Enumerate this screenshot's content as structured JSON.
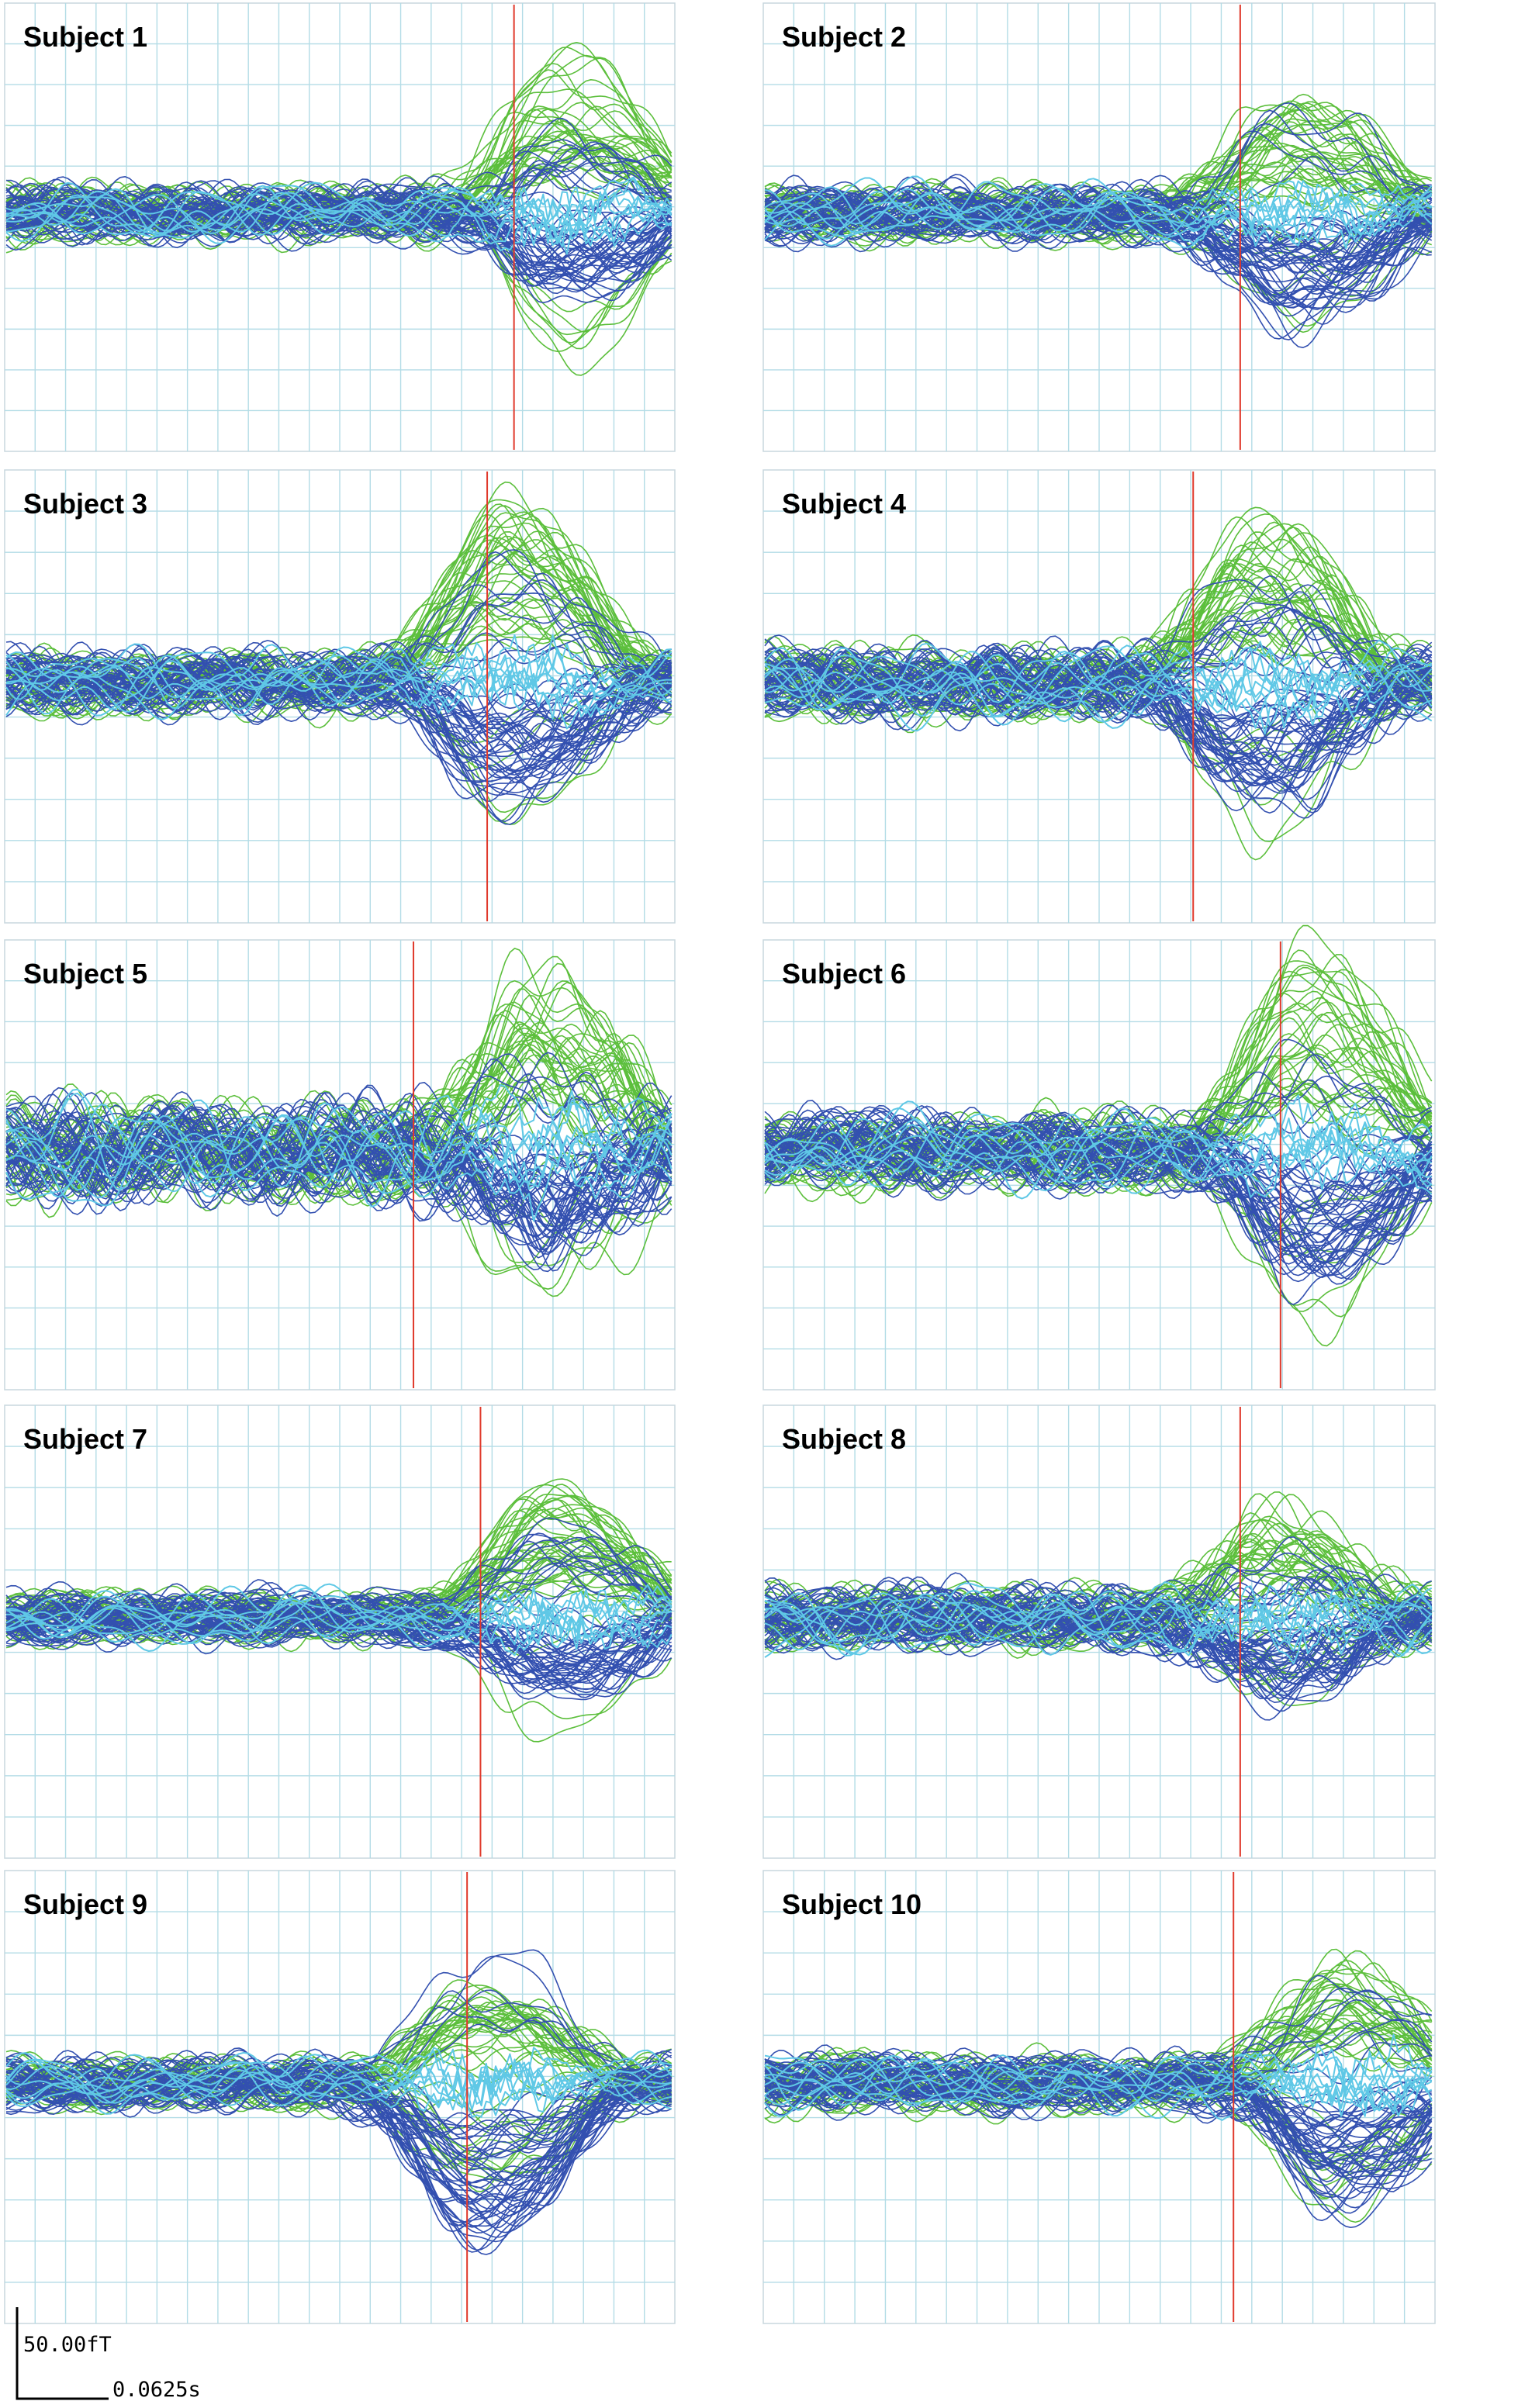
{
  "colors": {
    "grid": "#b3dce6",
    "frame": "#c8d7de",
    "marker": "#e0392b",
    "series_green": "#5cbf3c",
    "series_blue": "#3350b0",
    "series_cyan": "#5fc8e6"
  },
  "scale_bar": {
    "amplitude_label": "50.00fT",
    "time_label": "0.0625s"
  },
  "chart_data": [
    {
      "type": "line",
      "title": "Subject 1",
      "marker_x": 0.76,
      "peak_x": 0.82,
      "green_amp": 1.0,
      "blue_amp": 0.55,
      "pre_amp": 0.22,
      "seed": 11
    },
    {
      "type": "line",
      "title": "Subject 2",
      "marker_x": 0.71,
      "peak_x": 0.77,
      "green_amp": 0.7,
      "blue_amp": 0.75,
      "pre_amp": 0.22,
      "seed": 23
    },
    {
      "type": "line",
      "title": "Subject 3",
      "marker_x": 0.72,
      "peak_x": 0.73,
      "green_amp": 1.1,
      "blue_amp": 0.85,
      "pre_amp": 0.25,
      "seed": 37
    },
    {
      "type": "line",
      "title": "Subject 4",
      "marker_x": 0.64,
      "peak_x": 0.72,
      "green_amp": 1.0,
      "blue_amp": 0.8,
      "pre_amp": 0.28,
      "seed": 41
    },
    {
      "type": "line",
      "title": "Subject 5",
      "marker_x": 0.61,
      "peak_x": 0.78,
      "green_amp": 0.95,
      "blue_amp": 0.55,
      "pre_amp": 0.4,
      "seed": 53
    },
    {
      "type": "line",
      "title": "Subject 6",
      "marker_x": 0.77,
      "peak_x": 0.79,
      "green_amp": 1.3,
      "blue_amp": 0.85,
      "pre_amp": 0.3,
      "seed": 67
    },
    {
      "type": "line",
      "title": "Subject 7",
      "marker_x": 0.71,
      "peak_x": 0.8,
      "green_amp": 0.75,
      "blue_amp": 0.55,
      "pre_amp": 0.2,
      "seed": 71
    },
    {
      "type": "line",
      "title": "Subject 8",
      "marker_x": 0.71,
      "peak_x": 0.74,
      "green_amp": 0.6,
      "blue_amp": 0.5,
      "pre_amp": 0.25,
      "seed": 83
    },
    {
      "type": "line",
      "title": "Subject 9",
      "marker_x": 0.69,
      "peak_x": 0.69,
      "green_amp": 0.55,
      "blue_amp": 1.05,
      "pre_amp": 0.2,
      "seed": 97
    },
    {
      "type": "line",
      "title": "Subject 10",
      "marker_x": 0.7,
      "peak_x": 0.84,
      "green_amp": 0.75,
      "blue_amp": 0.85,
      "pre_amp": 0.22,
      "seed": 101
    }
  ]
}
